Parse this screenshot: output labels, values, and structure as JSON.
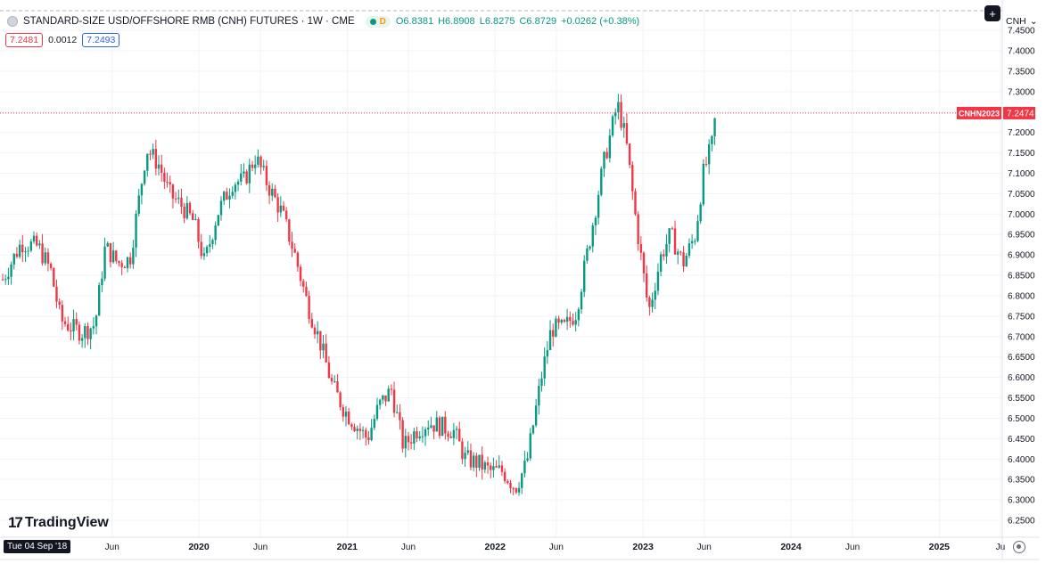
{
  "header": {
    "title": "STANDARD-SIZE USD/OFFSHORE RMB (CNH) FUTURES · 1W · CME",
    "status_letter": "D",
    "open_label": "O",
    "open": "6.8381",
    "high_label": "H",
    "high": "6.8908",
    "low_label": "L",
    "low": "6.8275",
    "close_label": "C",
    "close": "6.8729",
    "change": "+0.0262 (+0.38%)"
  },
  "bid_ask": {
    "sell": "7.2481",
    "spread": "0.0012",
    "buy": "7.2493"
  },
  "toolbar": {
    "symbol": "CNH",
    "symbol_chevron": "⌄",
    "add_icon": "+"
  },
  "logo": {
    "text": "TradingView",
    "mark": "17"
  },
  "crosshair_date": "Tue 04 Sep '18",
  "colors": {
    "up": "#089981",
    "down": "#f23645",
    "grid": "#f0f3fa",
    "text": "#131722"
  },
  "chart_data": {
    "type": "candlestick",
    "title": "STANDARD-SIZE USD/OFFSHORE RMB (CNH) FUTURES",
    "interval": "1W",
    "x_start": "2018-09-04",
    "x_end": "2025-12-31",
    "ylim": [
      6.22,
      7.46
    ],
    "y_ticks": [
      "6.2500",
      "6.3000",
      "6.3500",
      "6.4000",
      "6.4500",
      "6.5000",
      "6.5500",
      "6.6000",
      "6.6500",
      "6.7000",
      "6.7500",
      "6.8000",
      "6.8500",
      "6.9000",
      "6.9500",
      "7.0000",
      "7.0500",
      "7.1000",
      "7.1500",
      "7.2000",
      "7.2500",
      "7.3000",
      "7.3500",
      "7.4000",
      "7.4500"
    ],
    "x_ticks": [
      {
        "date": "2019-06-01",
        "label": "Jun"
      },
      {
        "date": "2020-01-01",
        "label": "2020"
      },
      {
        "date": "2020-06-01",
        "label": "Jun"
      },
      {
        "date": "2021-01-01",
        "label": "2021"
      },
      {
        "date": "2021-06-01",
        "label": "Jun"
      },
      {
        "date": "2022-01-01",
        "label": "2022"
      },
      {
        "date": "2022-06-01",
        "label": "Jun"
      },
      {
        "date": "2023-01-01",
        "label": "2023"
      },
      {
        "date": "2023-06-01",
        "label": "Jun"
      },
      {
        "date": "2024-01-01",
        "label": "2024"
      },
      {
        "date": "2024-06-01",
        "label": "Jun"
      },
      {
        "date": "2025-01-01",
        "label": "2025"
      },
      {
        "date": "2025-06-01",
        "label": "Ju"
      }
    ],
    "price_line": {
      "symbol": "CNHN2023",
      "value": 7.2474,
      "label": "7.2474"
    },
    "close_keypoints": [
      [
        "2018-09-04",
        6.84
      ],
      [
        "2018-10-20",
        6.93
      ],
      [
        "2018-12-01",
        6.92
      ],
      [
        "2019-01-01",
        6.86
      ],
      [
        "2019-01-25",
        6.74
      ],
      [
        "2019-02-25",
        6.72
      ],
      [
        "2019-03-20",
        6.71
      ],
      [
        "2019-04-20",
        6.73
      ],
      [
        "2019-05-15",
        6.92
      ],
      [
        "2019-06-15",
        6.88
      ],
      [
        "2019-07-15",
        6.89
      ],
      [
        "2019-08-25",
        7.16
      ],
      [
        "2019-09-25",
        7.12
      ],
      [
        "2019-10-20",
        7.05
      ],
      [
        "2019-11-20",
        7.02
      ],
      [
        "2019-12-20",
        6.98
      ],
      [
        "2020-01-15",
        6.88
      ],
      [
        "2020-02-15",
        7.0
      ],
      [
        "2020-03-25",
        7.08
      ],
      [
        "2020-04-20",
        7.08
      ],
      [
        "2020-05-20",
        7.14
      ],
      [
        "2020-06-20",
        7.07
      ],
      [
        "2020-07-25",
        7.0
      ],
      [
        "2020-08-25",
        6.9
      ],
      [
        "2020-09-25",
        6.78
      ],
      [
        "2020-10-25",
        6.69
      ],
      [
        "2020-11-25",
        6.58
      ],
      [
        "2020-12-25",
        6.52
      ],
      [
        "2021-01-25",
        6.48
      ],
      [
        "2021-02-20",
        6.45
      ],
      [
        "2021-03-20",
        6.53
      ],
      [
        "2021-04-20",
        6.57
      ],
      [
        "2021-05-20",
        6.43
      ],
      [
        "2021-06-20",
        6.47
      ],
      [
        "2021-07-20",
        6.49
      ],
      [
        "2021-08-20",
        6.48
      ],
      [
        "2021-09-20",
        6.47
      ],
      [
        "2021-10-20",
        6.4
      ],
      [
        "2021-11-20",
        6.39
      ],
      [
        "2021-12-20",
        6.37
      ],
      [
        "2022-01-20",
        6.37
      ],
      [
        "2022-02-20",
        6.33
      ],
      [
        "2022-03-20",
        6.39
      ],
      [
        "2022-04-25",
        6.6
      ],
      [
        "2022-05-20",
        6.72
      ],
      [
        "2022-06-20",
        6.72
      ],
      [
        "2022-07-20",
        6.76
      ],
      [
        "2022-08-25",
        6.95
      ],
      [
        "2022-09-25",
        7.12
      ],
      [
        "2022-10-30",
        7.27
      ],
      [
        "2022-11-20",
        7.18
      ],
      [
        "2022-12-15",
        6.98
      ],
      [
        "2023-01-15",
        6.76
      ],
      [
        "2023-02-15",
        6.9
      ],
      [
        "2023-03-10",
        6.95
      ],
      [
        "2023-04-10",
        6.88
      ],
      [
        "2023-05-10",
        6.95
      ],
      [
        "2023-05-30",
        7.1
      ],
      [
        "2023-06-20",
        7.17
      ],
      [
        "2023-06-30",
        7.25
      ]
    ]
  }
}
